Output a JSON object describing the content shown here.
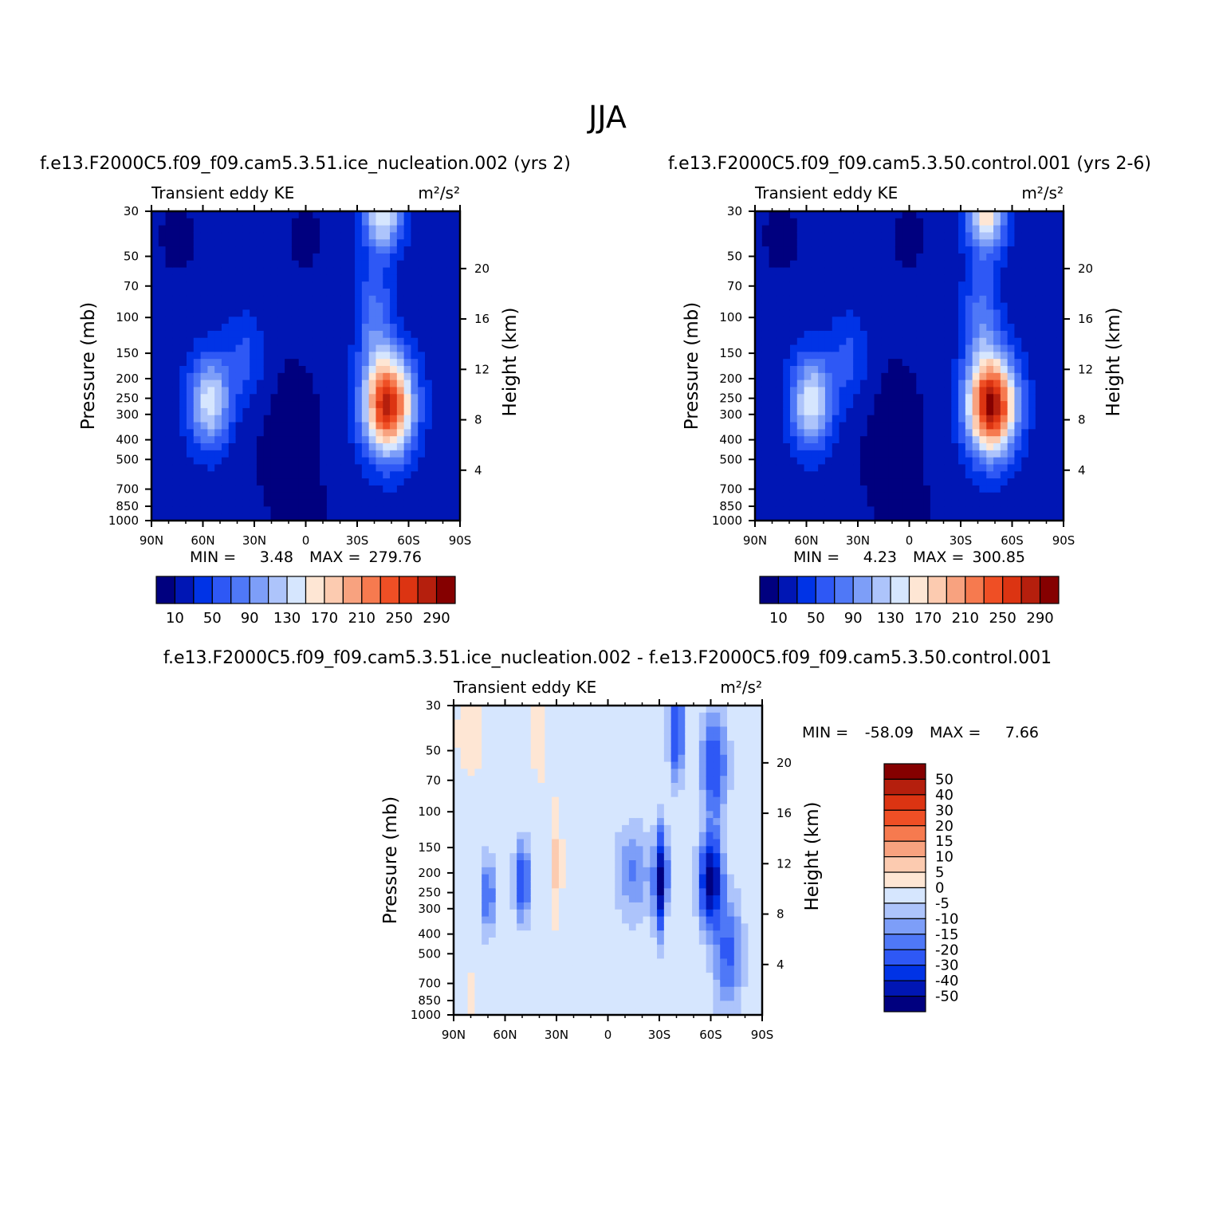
{
  "figure": {
    "title": "JJA",
    "colors": {
      "abs": [
        "#00007f",
        "#0016b4",
        "#0033e6",
        "#2e58f5",
        "#4f78f7",
        "#7d9ef8",
        "#adc4fb",
        "#d6e6fe",
        "#fee6d4",
        "#fccbb0",
        "#f8a27f",
        "#f67a4f",
        "#ef4f25",
        "#dc3412",
        "#b51f0d",
        "#850000"
      ],
      "diff": [
        "#00007f",
        "#0016b4",
        "#0033e6",
        "#2e58f5",
        "#4f78f7",
        "#7d9ef8",
        "#adc4fb",
        "#d6e6fe",
        "#fee6d4",
        "#fccbb0",
        "#f8a27f",
        "#f67a4f",
        "#ef4f25",
        "#dc3412",
        "#b51f0d",
        "#850000"
      ]
    }
  },
  "panels": [
    {
      "case": "f.e13.F2000C5.f09_f09.cam5.3.51.ice_nucleation.002 (yrs 2)",
      "left_label": "Transient eddy KE",
      "right_label": "m²/s²",
      "ylabel": "Pressure (mb)",
      "y2label": "Height (km)",
      "xticks": [
        "90N",
        "60N",
        "30N",
        "0",
        "30S",
        "60S",
        "90S"
      ],
      "yticks": [
        "30",
        "50",
        "70",
        "100",
        "150",
        "200",
        "250",
        "300",
        "400",
        "500",
        "700",
        "850",
        "1000"
      ],
      "y2ticks": [
        "20",
        "16",
        "12",
        "8",
        "4"
      ],
      "stats": {
        "min_label": "MIN =",
        "min": "3.48",
        "max_label": "MAX =",
        "max": "279.76"
      },
      "colorbar_labels": [
        "10",
        "50",
        "90",
        "130",
        "170",
        "210",
        "250",
        "290"
      ]
    },
    {
      "case": "f.e13.F2000C5.f09_f09.cam5.3.50.control.001 (yrs 2-6)",
      "left_label": "Transient eddy KE",
      "right_label": "m²/s²",
      "ylabel": "Pressure (mb)",
      "y2label": "Height (km)",
      "xticks": [
        "90N",
        "60N",
        "30N",
        "0",
        "30S",
        "60S",
        "90S"
      ],
      "yticks": [
        "30",
        "50",
        "70",
        "100",
        "150",
        "200",
        "250",
        "300",
        "400",
        "500",
        "700",
        "850",
        "1000"
      ],
      "y2ticks": [
        "20",
        "16",
        "12",
        "8",
        "4"
      ],
      "stats": {
        "min_label": "MIN =",
        "min": "4.23",
        "max_label": "MAX =",
        "max": "300.85"
      },
      "colorbar_labels": [
        "10",
        "50",
        "90",
        "130",
        "170",
        "210",
        "250",
        "290"
      ]
    },
    {
      "case": "f.e13.F2000C5.f09_f09.cam5.3.51.ice_nucleation.002 - f.e13.F2000C5.f09_f09.cam5.3.50.control.001",
      "left_label": "Transient eddy KE",
      "right_label": "m²/s²",
      "ylabel": "Pressure (mb)",
      "y2label": "Height (km)",
      "xticks": [
        "90N",
        "60N",
        "30N",
        "0",
        "30S",
        "60S",
        "90S"
      ],
      "yticks": [
        "30",
        "50",
        "70",
        "100",
        "150",
        "200",
        "250",
        "300",
        "400",
        "500",
        "700",
        "850",
        "1000"
      ],
      "y2ticks": [
        "20",
        "16",
        "12",
        "8",
        "4"
      ],
      "stats": {
        "min_label": "MIN =",
        "min": "-58.09",
        "max_label": "MAX =",
        "max": "7.66"
      },
      "colorbar_labels": [
        "50",
        "40",
        "30",
        "20",
        "15",
        "10",
        "5",
        "0",
        "-5",
        "-10",
        "-15",
        "-20",
        "-30",
        "-40",
        "-50"
      ]
    }
  ],
  "chart_data": [
    {
      "type": "heatmap",
      "title": "f.e13.F2000C5.f09_f09.cam5.3.51.ice_nucleation.002 (yrs 2)",
      "xlabel": "",
      "ylabel": "Pressure (mb)",
      "y2label": "Height (km)",
      "xlim": [
        90,
        -90
      ],
      "ylim": [
        1000,
        30
      ],
      "yscale": "log",
      "contour_levels": [
        10,
        30,
        50,
        70,
        90,
        110,
        130,
        150,
        170,
        190,
        210,
        230,
        250,
        270,
        290
      ],
      "features": [
        {
          "lat": -50,
          "p": 270,
          "value": 279
        },
        {
          "lat": 55,
          "p": 250,
          "value": 160
        },
        {
          "lat": -45,
          "p": 30,
          "value": 150
        }
      ],
      "min": 3.48,
      "max": 279.76
    },
    {
      "type": "heatmap",
      "title": "f.e13.F2000C5.f09_f09.cam5.3.50.control.001 (yrs 2-6)",
      "xlabel": "",
      "ylabel": "Pressure (mb)",
      "y2label": "Height (km)",
      "xlim": [
        90,
        -90
      ],
      "ylim": [
        1000,
        30
      ],
      "yscale": "log",
      "contour_levels": [
        10,
        30,
        50,
        70,
        90,
        110,
        130,
        150,
        170,
        190,
        210,
        230,
        250,
        270,
        290
      ],
      "features": [
        {
          "lat": -48,
          "p": 270,
          "value": 300
        },
        {
          "lat": 57,
          "p": 250,
          "value": 165
        },
        {
          "lat": -45,
          "p": 30,
          "value": 160
        }
      ],
      "min": 4.23,
      "max": 300.85
    },
    {
      "type": "heatmap",
      "title": "f.e13.F2000C5.f09_f09.cam5.3.51.ice_nucleation.002 - f.e13.F2000C5.f09_f09.cam5.3.50.control.001",
      "xlabel": "",
      "ylabel": "Pressure (mb)",
      "y2label": "Height (km)",
      "xlim": [
        90,
        -90
      ],
      "ylim": [
        1000,
        30
      ],
      "yscale": "log",
      "contour_levels": [
        -50,
        -40,
        -30,
        -20,
        -15,
        -10,
        -5,
        0,
        5,
        10,
        15,
        20,
        30,
        40,
        50
      ],
      "features": [
        {
          "lat": -60,
          "p": 220,
          "value": -58
        },
        {
          "lat": -31,
          "p": 220,
          "value": -55
        },
        {
          "lat": 50,
          "p": 220,
          "value": -35
        },
        {
          "lat": -38,
          "p": 100,
          "value": -30
        },
        {
          "lat": 30,
          "p": 180,
          "value": 7
        }
      ],
      "min": -58.09,
      "max": 7.66
    }
  ]
}
